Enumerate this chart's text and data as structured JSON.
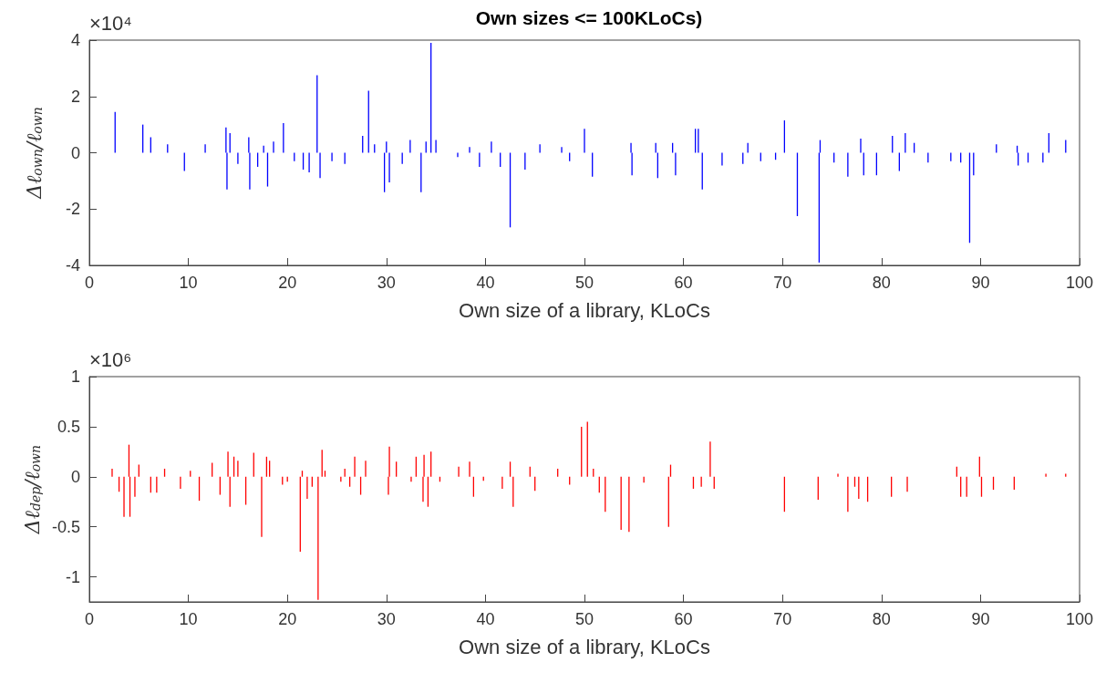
{
  "chart_data": [
    {
      "type": "bar",
      "title": "Own sizes <= 100KLoCs)",
      "xlabel": "Own size of a library, KLoCs",
      "ylabel": "Δℓ$_{own}$/ℓ$_{own}$",
      "annotations": [
        "×10⁴"
      ],
      "color": "#0000ff",
      "x": [
        2.6,
        5.4,
        6.2,
        7.9,
        9.6,
        11.7,
        13.8,
        13.9,
        14.2,
        15.0,
        16.1,
        16.2,
        17.0,
        17.6,
        18.0,
        18.6,
        19.6,
        20.7,
        21.6,
        22.2,
        23.0,
        23.3,
        24.5,
        25.8,
        27.6,
        28.2,
        28.8,
        29.8,
        30.0,
        30.3,
        31.6,
        32.4,
        33.5,
        34.0,
        34.5,
        35.0,
        37.2,
        38.4,
        39.4,
        40.6,
        41.5,
        42.5,
        44.0,
        45.5,
        47.7,
        48.5,
        50.0,
        50.8,
        54.7,
        54.8,
        57.2,
        57.4,
        58.9,
        59.2,
        61.2,
        61.5,
        61.9,
        63.9,
        66.0,
        66.5,
        67.8,
        69.3,
        70.2,
        71.5,
        73.7,
        73.8,
        75.2,
        76.6,
        77.9,
        78.2,
        79.5,
        81.1,
        81.8,
        82.4,
        83.3,
        84.7,
        87.0,
        88.0,
        88.9,
        89.3,
        91.6,
        93.7,
        93.8,
        94.8,
        96.3,
        96.9,
        98.6
      ],
      "values": [
        1.45,
        1.0,
        0.55,
        0.3,
        -0.65,
        0.3,
        0.9,
        -1.3,
        0.7,
        -0.4,
        0.55,
        -1.3,
        -0.5,
        0.25,
        -1.2,
        0.4,
        1.05,
        -0.3,
        -0.6,
        -0.7,
        2.75,
        -0.9,
        -0.3,
        -0.4,
        0.6,
        2.2,
        0.3,
        -1.4,
        0.4,
        -1.05,
        -0.4,
        0.45,
        -1.4,
        0.4,
        3.9,
        0.45,
        -0.15,
        0.2,
        -0.5,
        0.4,
        -0.5,
        -2.65,
        -0.6,
        0.3,
        0.2,
        -0.3,
        0.85,
        -0.85,
        0.35,
        -0.8,
        0.35,
        -0.9,
        0.35,
        -0.8,
        0.85,
        0.85,
        -1.3,
        -0.45,
        -0.4,
        0.35,
        -0.3,
        -0.25,
        1.15,
        -2.25,
        -3.9,
        0.45,
        -0.35,
        -0.85,
        0.5,
        -0.8,
        -0.8,
        0.6,
        -0.65,
        0.7,
        0.35,
        -0.35,
        -0.3,
        -0.35,
        -3.2,
        -0.8,
        0.3,
        0.25,
        -0.45,
        -0.35,
        -0.35,
        0.7,
        0.45
      ],
      "xlim": [
        0,
        100
      ],
      "xticks": [
        0,
        10,
        20,
        30,
        40,
        50,
        60,
        70,
        80,
        90,
        100
      ],
      "ylim": [
        -4,
        4
      ],
      "yticks": [
        -4,
        -2,
        0,
        2,
        4
      ]
    },
    {
      "type": "bar",
      "xlabel": "Own size of a library, KLoCs",
      "ylabel": "Δℓ$_{dep}$/ℓ$_{own}$",
      "annotations": [
        "×10⁶"
      ],
      "color": "#ff0000",
      "x": [
        2.3,
        3.0,
        3.5,
        4.0,
        4.1,
        4.6,
        5.0,
        6.2,
        6.8,
        7.6,
        9.2,
        10.2,
        11.1,
        12.4,
        13.2,
        14.0,
        14.2,
        14.6,
        15.0,
        15.8,
        16.6,
        17.4,
        17.9,
        18.0,
        18.2,
        19.5,
        20.0,
        21.3,
        21.5,
        22.0,
        22.5,
        23.1,
        23.5,
        23.8,
        25.4,
        25.8,
        26.3,
        26.8,
        27.4,
        27.9,
        28.3,
        29.5,
        30.2,
        30.3,
        31.0,
        32.5,
        33.0,
        33.7,
        33.8,
        34.2,
        34.5,
        35.4,
        37.3,
        38.4,
        38.8,
        39.8,
        41.7,
        42.5,
        42.8,
        44.5,
        45.0,
        47.3,
        48.5,
        49.7,
        50.3,
        50.9,
        51.5,
        52.1,
        53.7,
        54.5,
        56.0,
        58.5,
        58.7,
        61.0,
        61.8,
        62.7,
        63.1,
        70.2,
        73.6,
        75.6,
        76.6,
        77.3,
        77.7,
        78.6,
        81.0,
        82.6,
        87.6,
        88.0,
        88.6,
        89.9,
        90.1,
        91.3,
        93.4,
        96.6,
        98.6
      ],
      "values": [
        0.08,
        -0.15,
        -0.4,
        0.32,
        -0.4,
        -0.2,
        0.12,
        -0.16,
        -0.16,
        0.08,
        -0.12,
        0.06,
        -0.24,
        0.14,
        -0.18,
        0.25,
        -0.3,
        0.2,
        0.16,
        -0.28,
        0.24,
        -0.6,
        0.2,
        null,
        0.16,
        -0.08,
        -0.05,
        -0.75,
        0.06,
        -0.22,
        -0.1,
        -1.23,
        0.27,
        0.06,
        -0.05,
        0.08,
        -0.1,
        0.2,
        -0.18,
        0.16,
        null,
        null,
        -0.18,
        0.3,
        0.15,
        -0.05,
        0.2,
        -0.25,
        0.22,
        -0.3,
        0.25,
        -0.05,
        0.1,
        0.15,
        -0.2,
        -0.04,
        -0.12,
        0.15,
        -0.3,
        0.1,
        -0.14,
        0.08,
        -0.08,
        0.5,
        0.55,
        0.08,
        -0.16,
        -0.35,
        -0.53,
        -0.55,
        -0.06,
        -0.5,
        0.12,
        -0.12,
        -0.1,
        0.35,
        -0.12,
        -0.35,
        -0.23,
        0.03,
        -0.35,
        -0.1,
        -0.22,
        -0.25,
        -0.2,
        -0.15,
        0.1,
        -0.2,
        -0.2,
        0.2,
        -0.2,
        -0.13,
        -0.13,
        0.03,
        0.03
      ],
      "xlim": [
        0,
        100
      ],
      "xticks": [
        0,
        10,
        20,
        30,
        40,
        50,
        60,
        70,
        80,
        90,
        100
      ],
      "ylim": [
        -1.25,
        1
      ],
      "yticks": [
        -1,
        -0.5,
        0,
        0.5,
        1
      ]
    }
  ]
}
